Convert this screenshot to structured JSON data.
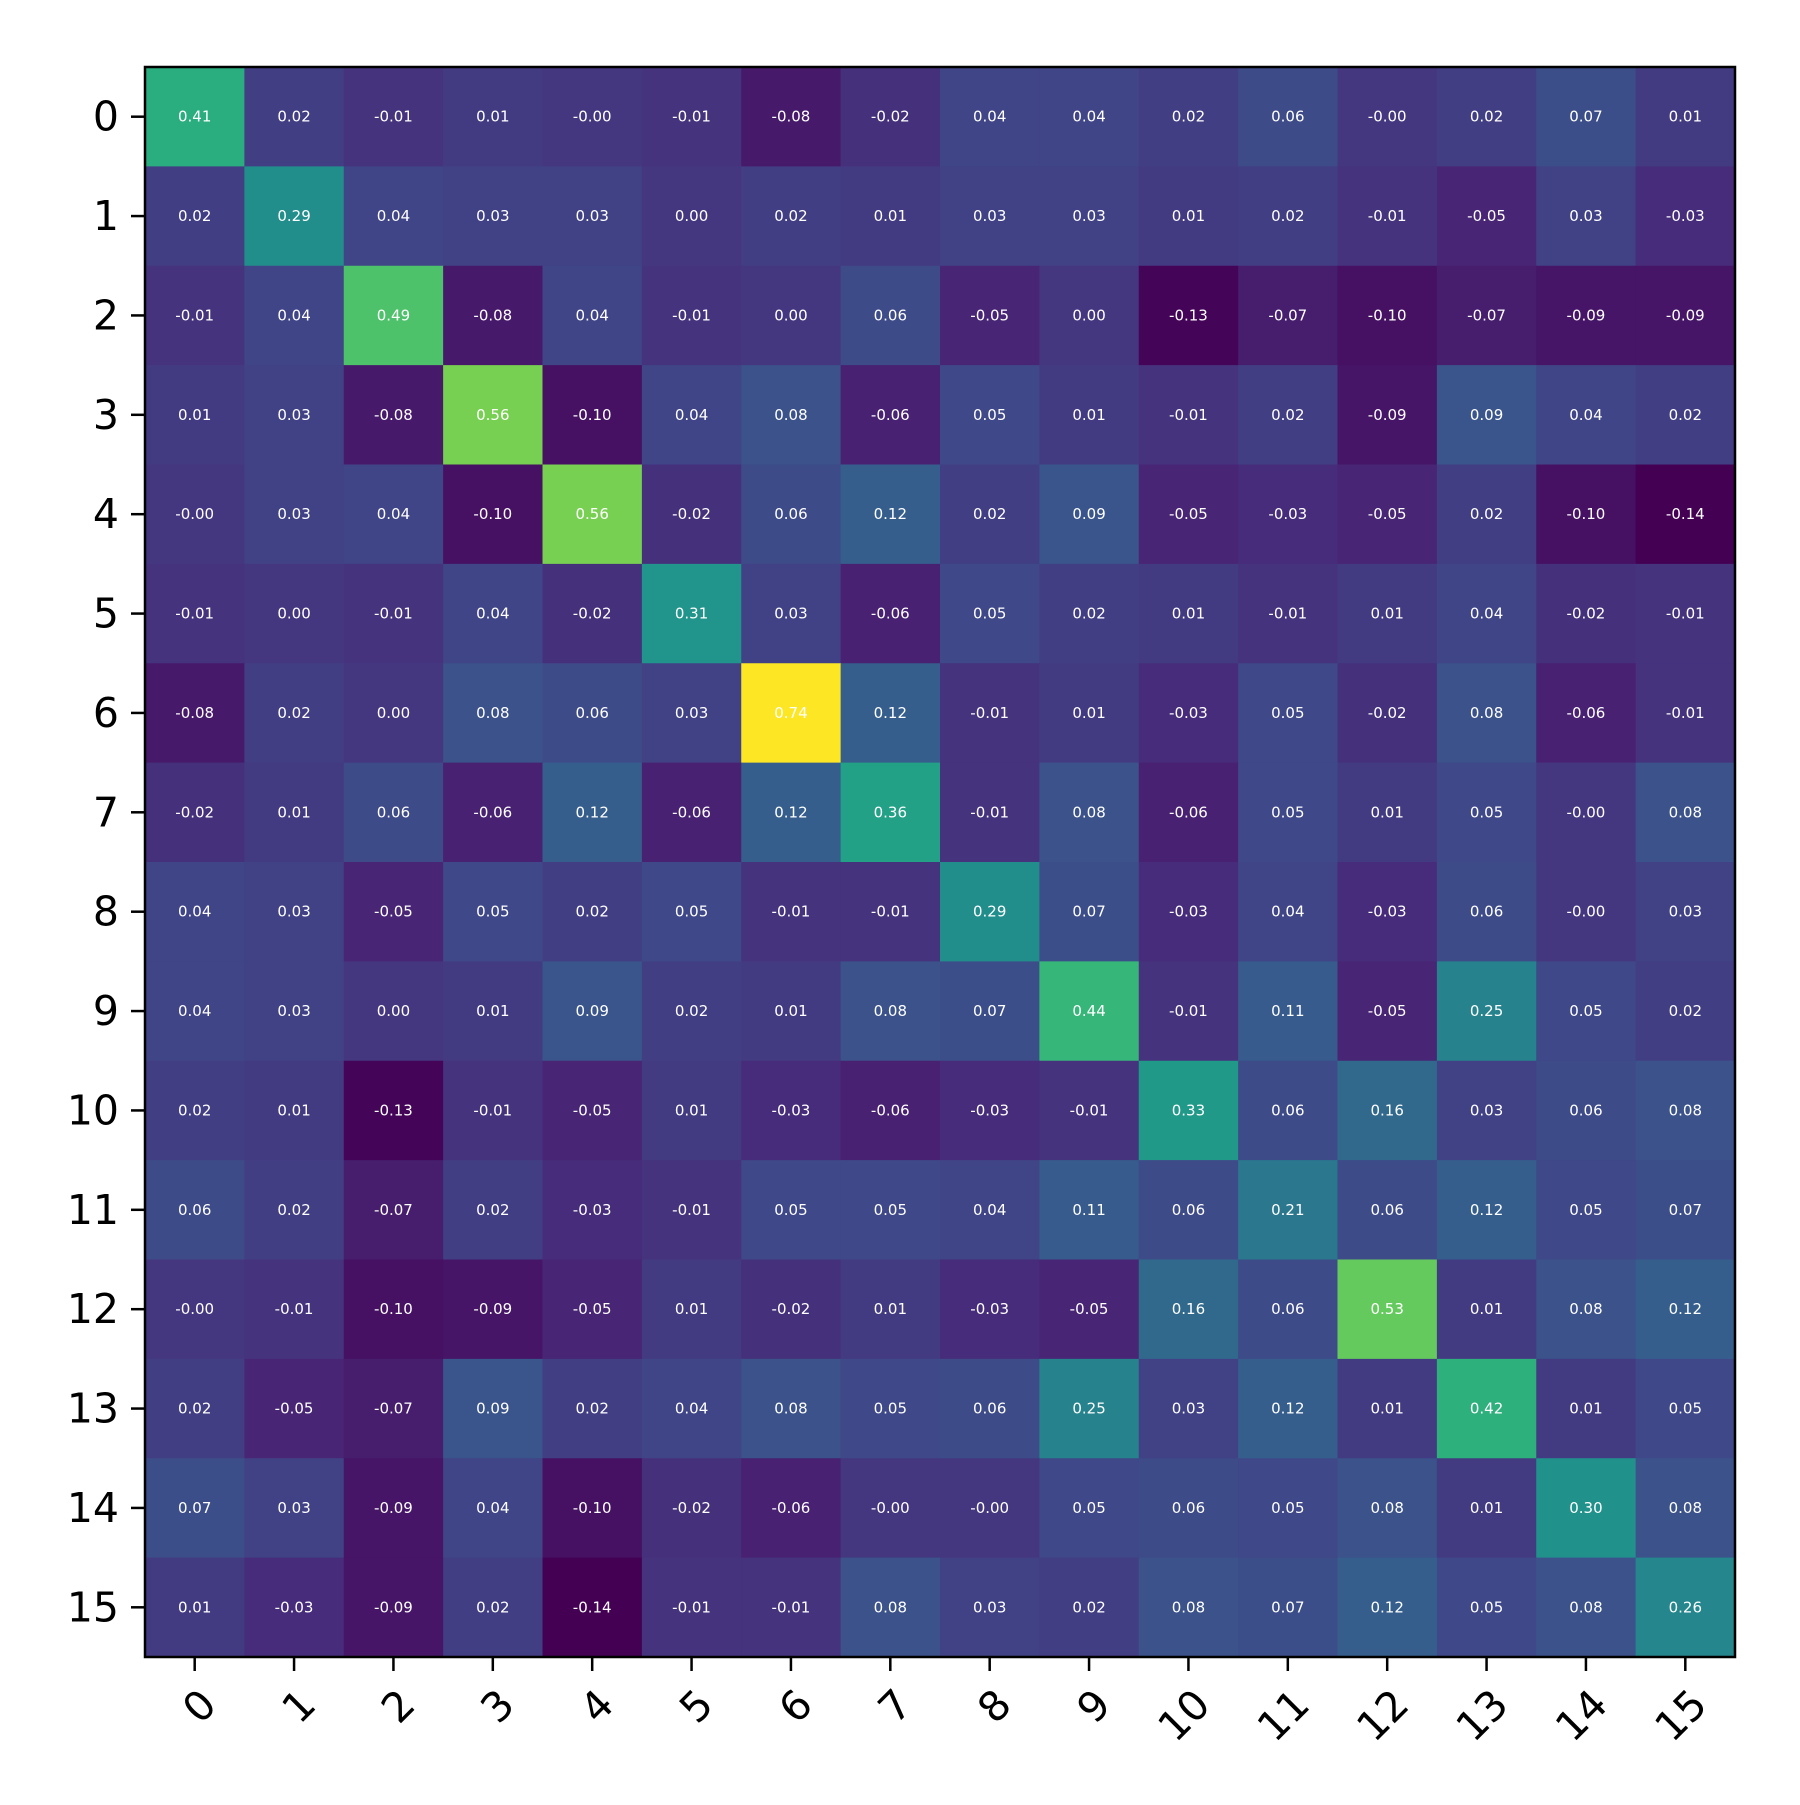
{
  "chart_data": {
    "type": "heatmap",
    "colormap": "viridis",
    "vmin": -0.14,
    "vmax": 0.74,
    "grid": false,
    "legend": "none",
    "x_tick_labels": [
      "0",
      "1",
      "2",
      "3",
      "4",
      "5",
      "6",
      "7",
      "8",
      "9",
      "10",
      "11",
      "12",
      "13",
      "14",
      "15"
    ],
    "y_tick_labels": [
      "0",
      "1",
      "2",
      "3",
      "4",
      "5",
      "6",
      "7",
      "8",
      "9",
      "10",
      "11",
      "12",
      "13",
      "14",
      "15"
    ],
    "values": [
      [
        0.41,
        0.02,
        -0.01,
        0.01,
        -0.0,
        -0.01,
        -0.08,
        -0.02,
        0.04,
        0.04,
        0.02,
        0.06,
        -0.0,
        0.02,
        0.07,
        0.01
      ],
      [
        0.02,
        0.29,
        0.04,
        0.03,
        0.03,
        0.0,
        0.02,
        0.01,
        0.03,
        0.03,
        0.01,
        0.02,
        -0.01,
        -0.05,
        0.03,
        -0.03
      ],
      [
        -0.01,
        0.04,
        0.49,
        -0.08,
        0.04,
        -0.01,
        0.0,
        0.06,
        -0.05,
        0.0,
        -0.13,
        -0.07,
        -0.1,
        -0.07,
        -0.09,
        -0.09
      ],
      [
        0.01,
        0.03,
        -0.08,
        0.56,
        -0.1,
        0.04,
        0.08,
        -0.06,
        0.05,
        0.01,
        -0.01,
        0.02,
        -0.09,
        0.09,
        0.04,
        0.02
      ],
      [
        -0.0,
        0.03,
        0.04,
        -0.1,
        0.56,
        -0.02,
        0.06,
        0.12,
        0.02,
        0.09,
        -0.05,
        -0.03,
        -0.05,
        0.02,
        -0.1,
        -0.14
      ],
      [
        -0.01,
        0.0,
        -0.01,
        0.04,
        -0.02,
        0.31,
        0.03,
        -0.06,
        0.05,
        0.02,
        0.01,
        -0.01,
        0.01,
        0.04,
        -0.02,
        -0.01
      ],
      [
        -0.08,
        0.02,
        0.0,
        0.08,
        0.06,
        0.03,
        0.74,
        0.12,
        -0.01,
        0.01,
        -0.03,
        0.05,
        -0.02,
        0.08,
        -0.06,
        -0.01
      ],
      [
        -0.02,
        0.01,
        0.06,
        -0.06,
        0.12,
        -0.06,
        0.12,
        0.36,
        -0.01,
        0.08,
        -0.06,
        0.05,
        0.01,
        0.05,
        -0.0,
        0.08
      ],
      [
        0.04,
        0.03,
        -0.05,
        0.05,
        0.02,
        0.05,
        -0.01,
        -0.01,
        0.29,
        0.07,
        -0.03,
        0.04,
        -0.03,
        0.06,
        -0.0,
        0.03
      ],
      [
        0.04,
        0.03,
        0.0,
        0.01,
        0.09,
        0.02,
        0.01,
        0.08,
        0.07,
        0.44,
        -0.01,
        0.11,
        -0.05,
        0.25,
        0.05,
        0.02
      ],
      [
        0.02,
        0.01,
        -0.13,
        -0.01,
        -0.05,
        0.01,
        -0.03,
        -0.06,
        -0.03,
        -0.01,
        0.33,
        0.06,
        0.16,
        0.03,
        0.06,
        0.08
      ],
      [
        0.06,
        0.02,
        -0.07,
        0.02,
        -0.03,
        -0.01,
        0.05,
        0.05,
        0.04,
        0.11,
        0.06,
        0.21,
        0.06,
        0.12,
        0.05,
        0.07
      ],
      [
        -0.0,
        -0.01,
        -0.1,
        -0.09,
        -0.05,
        0.01,
        -0.02,
        0.01,
        -0.03,
        -0.05,
        0.16,
        0.06,
        0.53,
        0.01,
        0.08,
        0.12
      ],
      [
        0.02,
        -0.05,
        -0.07,
        0.09,
        0.02,
        0.04,
        0.08,
        0.05,
        0.06,
        0.25,
        0.03,
        0.12,
        0.01,
        0.42,
        0.01,
        0.05
      ],
      [
        0.07,
        0.03,
        -0.09,
        0.04,
        -0.1,
        -0.02,
        -0.06,
        -0.0,
        -0.0,
        0.05,
        0.06,
        0.05,
        0.08,
        0.01,
        0.3,
        0.08
      ],
      [
        0.01,
        -0.03,
        -0.09,
        0.02,
        -0.14,
        -0.01,
        -0.01,
        0.08,
        0.03,
        0.02,
        0.08,
        0.07,
        0.12,
        0.05,
        0.08,
        0.26
      ]
    ],
    "cell_labels": [
      [
        "0.41",
        "0.02",
        "-0.01",
        "0.01",
        "-0.00",
        "-0.01",
        "-0.08",
        "-0.02",
        "0.04",
        "0.04",
        "0.02",
        "0.06",
        "-0.00",
        "0.02",
        "0.07",
        "0.01"
      ],
      [
        "0.02",
        "0.29",
        "0.04",
        "0.03",
        "0.03",
        "0.00",
        "0.02",
        "0.01",
        "0.03",
        "0.03",
        "0.01",
        "0.02",
        "-0.01",
        "-0.05",
        "0.03",
        "-0.03"
      ],
      [
        "-0.01",
        "0.04",
        "0.49",
        "-0.08",
        "0.04",
        "-0.01",
        "0.00",
        "0.06",
        "-0.05",
        "0.00",
        "-0.13",
        "-0.07",
        "-0.10",
        "-0.07",
        "-0.09",
        "-0.09"
      ],
      [
        "0.01",
        "0.03",
        "-0.08",
        "0.56",
        "-0.10",
        "0.04",
        "0.08",
        "-0.06",
        "0.05",
        "0.01",
        "-0.01",
        "0.02",
        "-0.09",
        "0.09",
        "0.04",
        "0.02"
      ],
      [
        "-0.00",
        "0.03",
        "0.04",
        "-0.10",
        "0.56",
        "-0.02",
        "0.06",
        "0.12",
        "0.02",
        "0.09",
        "-0.05",
        "-0.03",
        "-0.05",
        "0.02",
        "-0.10",
        "-0.14"
      ],
      [
        "-0.01",
        "0.00",
        "-0.01",
        "0.04",
        "-0.02",
        "0.31",
        "0.03",
        "-0.06",
        "0.05",
        "0.02",
        "0.01",
        "-0.01",
        "0.01",
        "0.04",
        "-0.02",
        "-0.01"
      ],
      [
        "-0.08",
        "0.02",
        "0.00",
        "0.08",
        "0.06",
        "0.03",
        "0.74",
        "0.12",
        "-0.01",
        "0.01",
        "-0.03",
        "0.05",
        "-0.02",
        "0.08",
        "-0.06",
        "-0.01"
      ],
      [
        "-0.02",
        "0.01",
        "0.06",
        "-0.06",
        "0.12",
        "-0.06",
        "0.12",
        "0.36",
        "-0.01",
        "0.08",
        "-0.06",
        "0.05",
        "0.01",
        "0.05",
        "-0.00",
        "0.08"
      ],
      [
        "0.04",
        "0.03",
        "-0.05",
        "0.05",
        "0.02",
        "0.05",
        "-0.01",
        "-0.01",
        "0.29",
        "0.07",
        "-0.03",
        "0.04",
        "-0.03",
        "0.06",
        "-0.00",
        "0.03"
      ],
      [
        "0.04",
        "0.03",
        "0.00",
        "0.01",
        "0.09",
        "0.02",
        "0.01",
        "0.08",
        "0.07",
        "0.44",
        "-0.01",
        "0.11",
        "-0.05",
        "0.25",
        "0.05",
        "0.02"
      ],
      [
        "0.02",
        "0.01",
        "-0.13",
        "-0.01",
        "-0.05",
        "0.01",
        "-0.03",
        "-0.06",
        "-0.03",
        "-0.01",
        "0.33",
        "0.06",
        "0.16",
        "0.03",
        "0.06",
        "0.08"
      ],
      [
        "0.06",
        "0.02",
        "-0.07",
        "0.02",
        "-0.03",
        "-0.01",
        "0.05",
        "0.05",
        "0.04",
        "0.11",
        "0.06",
        "0.21",
        "0.06",
        "0.12",
        "0.05",
        "0.07"
      ],
      [
        "-0.00",
        "-0.01",
        "-0.10",
        "-0.09",
        "-0.05",
        "0.01",
        "-0.02",
        "0.01",
        "-0.03",
        "-0.05",
        "0.16",
        "0.06",
        "0.53",
        "0.01",
        "0.08",
        "0.12"
      ],
      [
        "0.02",
        "-0.05",
        "-0.07",
        "0.09",
        "0.02",
        "0.04",
        "0.08",
        "0.05",
        "0.06",
        "0.25",
        "0.03",
        "0.12",
        "0.01",
        "0.42",
        "0.01",
        "0.05"
      ],
      [
        "0.07",
        "0.03",
        "-0.09",
        "0.04",
        "-0.10",
        "-0.02",
        "-0.06",
        "-0.00",
        "-0.00",
        "0.05",
        "0.06",
        "0.05",
        "0.08",
        "0.01",
        "0.30",
        "0.08"
      ],
      [
        "0.01",
        "-0.03",
        "-0.09",
        "0.02",
        "-0.14",
        "-0.01",
        "-0.01",
        "0.08",
        "0.03",
        "0.02",
        "0.08",
        "0.07",
        "0.12",
        "0.05",
        "0.08",
        "0.26"
      ]
    ],
    "title": "",
    "xlabel": "",
    "ylabel": ""
  }
}
